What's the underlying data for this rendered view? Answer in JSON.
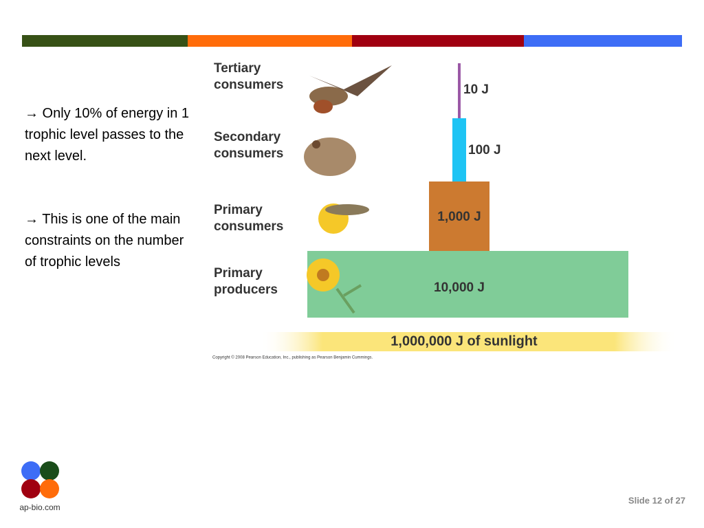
{
  "bullets": [
    "→ Only 10% of energy in 1 trophic level passes to the next level.",
    "→ This is one of the main constraints on the number of trophic levels"
  ],
  "pyramid": {
    "levels": [
      {
        "label": "Tertiary\nconsumers",
        "energy": "10 J"
      },
      {
        "label": "Secondary\nconsumers",
        "energy": "100 J"
      },
      {
        "label": "Primary\nconsumers",
        "energy": "1,000 J"
      },
      {
        "label": "Primary\nproducers",
        "energy": "10,000 J"
      }
    ],
    "sunlight": "1,000,000 J of sunlight",
    "copyright": "Copyright © 2008 Pearson Education, Inc., publishing as Pearson Benjamin Cummings."
  },
  "footer": {
    "logo": "ap-bio.com",
    "slide": "Slide 12 of 27"
  }
}
